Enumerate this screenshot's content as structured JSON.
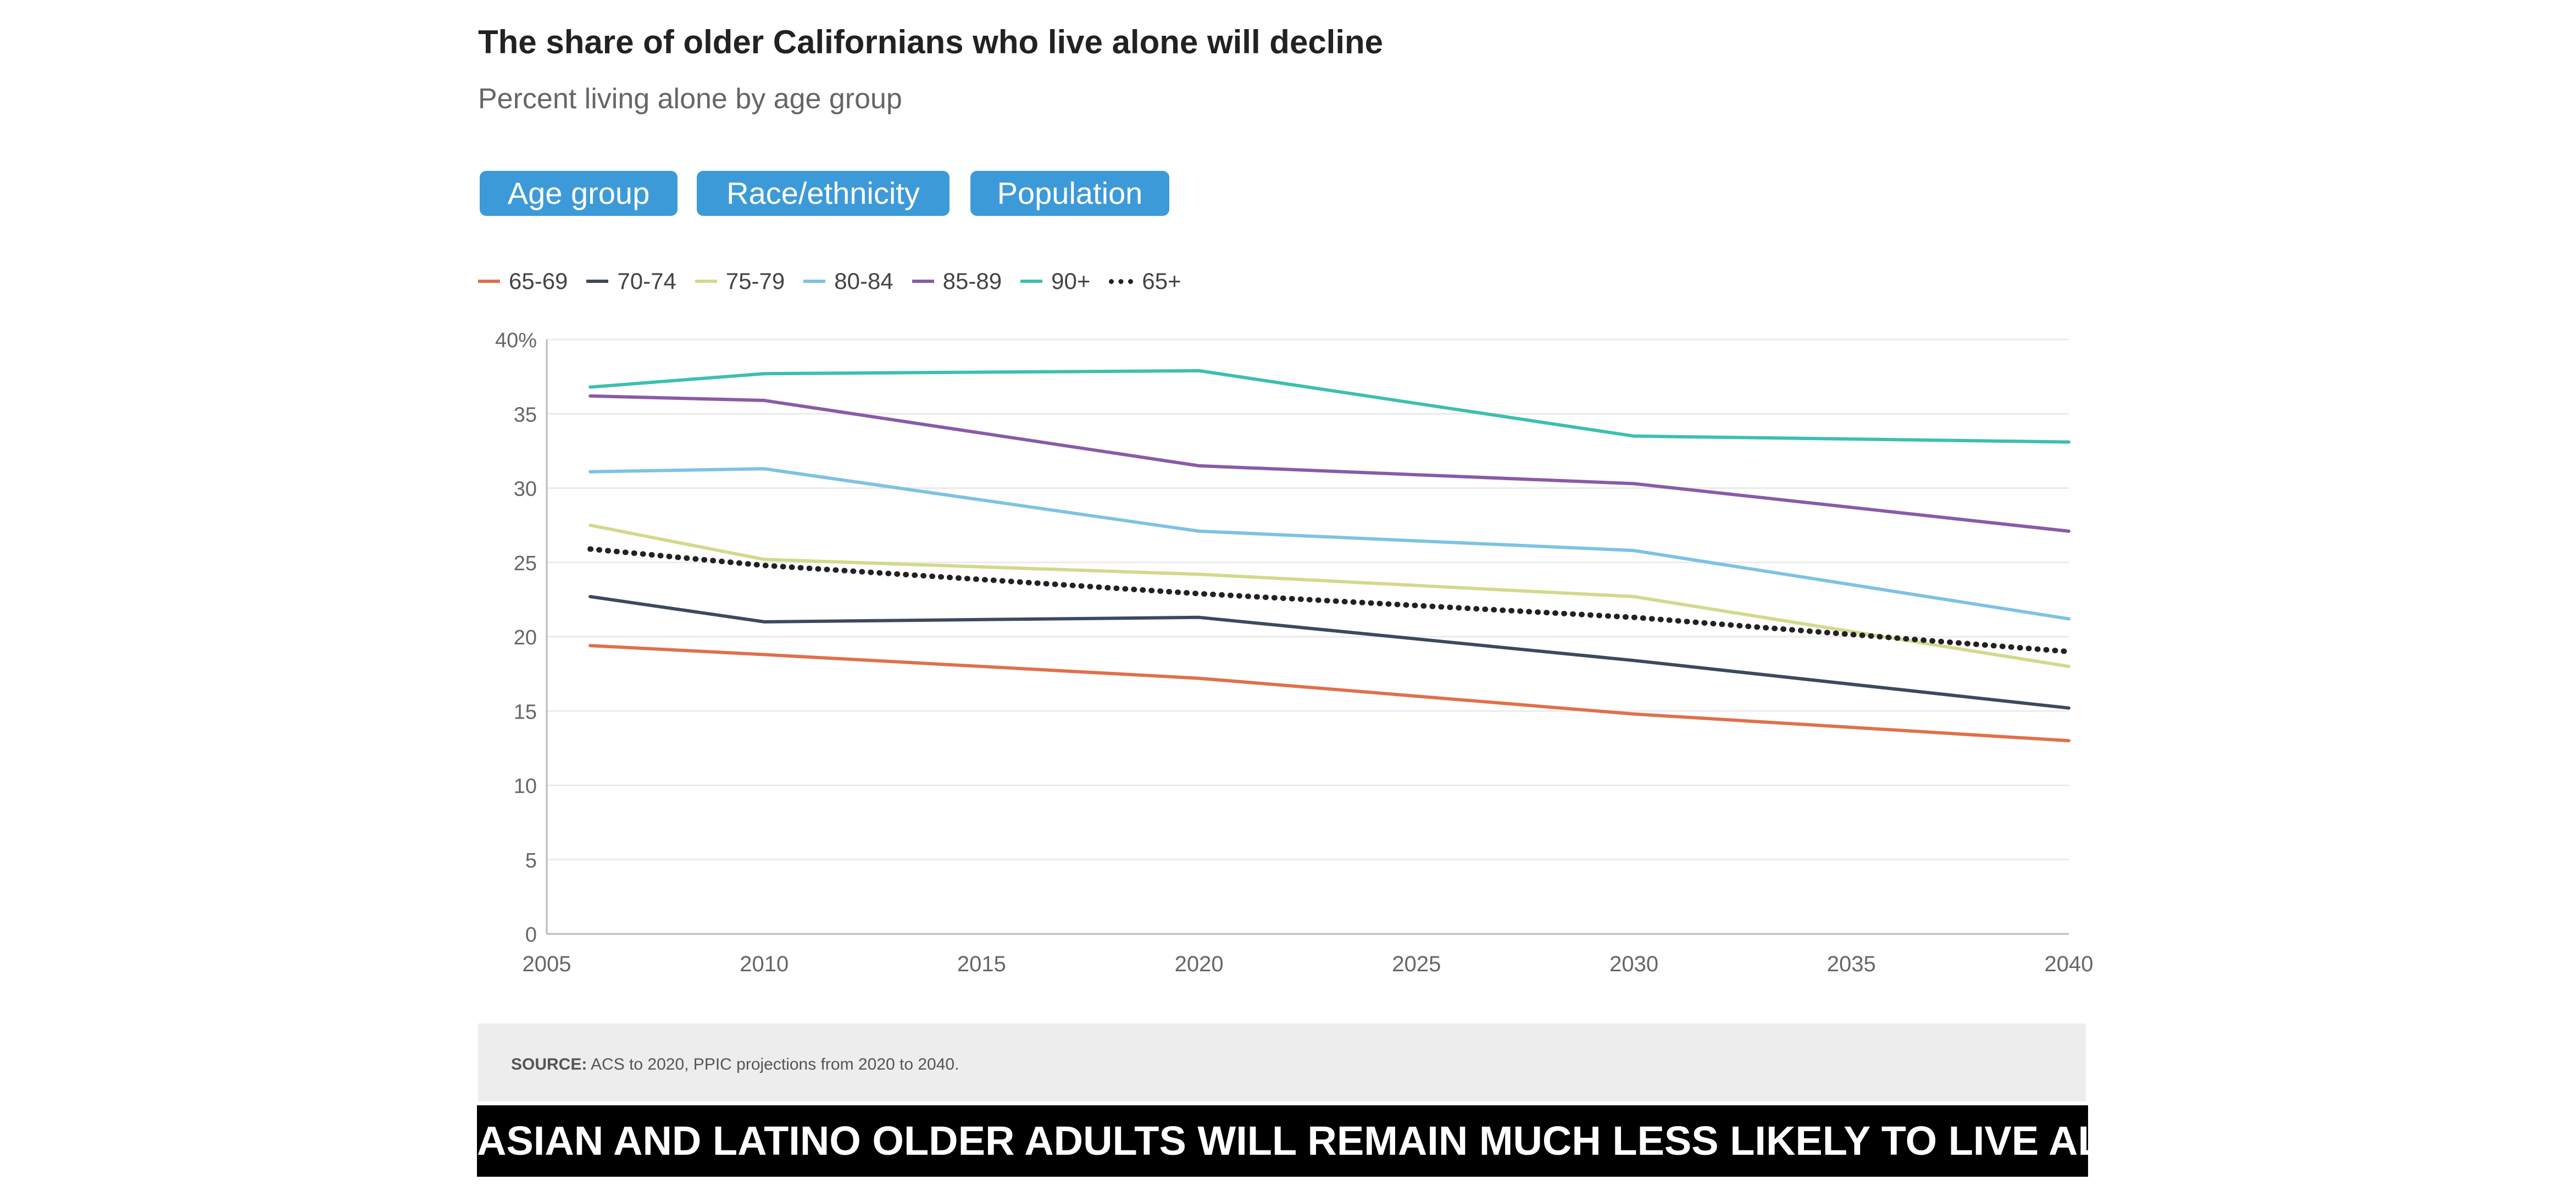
{
  "header": {
    "title": "The share of older Californians who live alone will decline",
    "subtitle": "Percent living alone by age group"
  },
  "tabs": [
    {
      "label": "Age group",
      "selected": true
    },
    {
      "label": "Race/ethnicity",
      "selected": false
    },
    {
      "label": "Population",
      "selected": false
    }
  ],
  "colors": {
    "tab_background": "#3d9ad9",
    "banner_background": "#000000",
    "source_background": "#ededed"
  },
  "chart_data": {
    "type": "line",
    "title": "The share of older Californians who live alone will decline",
    "subtitle": "Percent living alone by age group",
    "xlabel": "",
    "ylabel": "",
    "xlim": [
      2005,
      2040
    ],
    "ylim": [
      0,
      40
    ],
    "x_ticks": [
      "2005",
      "2010",
      "2015",
      "2020",
      "2025",
      "2030",
      "2035",
      "2040"
    ],
    "y_ticks": [
      "0",
      "5",
      "10",
      "15",
      "20",
      "25",
      "30",
      "35",
      "40%"
    ],
    "grid": true,
    "legend_position": "top-left",
    "series": [
      {
        "name": "65-69",
        "color": "#e0704a",
        "style": "solid",
        "x": [
          2006,
          2010,
          2020,
          2030,
          2040
        ],
        "values": [
          19.4,
          18.8,
          17.2,
          14.8,
          13.0
        ]
      },
      {
        "name": "70-74",
        "color": "#3b4a5c",
        "style": "solid",
        "x": [
          2006,
          2010,
          2020,
          2030,
          2040
        ],
        "values": [
          22.7,
          21.0,
          21.3,
          18.4,
          15.2
        ]
      },
      {
        "name": "75-79",
        "color": "#d3d98a",
        "style": "solid",
        "x": [
          2006,
          2010,
          2020,
          2030,
          2040
        ],
        "values": [
          27.5,
          25.2,
          24.2,
          22.7,
          18.0
        ]
      },
      {
        "name": "80-84",
        "color": "#7cc3e3",
        "style": "solid",
        "x": [
          2006,
          2010,
          2020,
          2030,
          2040
        ],
        "values": [
          31.1,
          31.3,
          27.1,
          25.8,
          21.2
        ]
      },
      {
        "name": "85-89",
        "color": "#8a5aa8",
        "style": "solid",
        "x": [
          2006,
          2010,
          2020,
          2030,
          2040
        ],
        "values": [
          36.2,
          35.9,
          31.5,
          30.3,
          27.1
        ]
      },
      {
        "name": "90+",
        "color": "#3dbfb0",
        "style": "solid",
        "x": [
          2006,
          2010,
          2020,
          2030,
          2040
        ],
        "values": [
          36.8,
          37.7,
          37.9,
          33.5,
          33.1
        ]
      },
      {
        "name": "65+",
        "color": "#222222",
        "style": "dotted",
        "x": [
          2006,
          2010,
          2020,
          2030,
          2040
        ],
        "values": [
          25.9,
          24.8,
          22.9,
          21.3,
          19.0
        ]
      }
    ]
  },
  "source": {
    "label": "SOURCE:",
    "text": " ACS to 2020, PPIC projections from 2020 to 2040."
  },
  "banner": {
    "text": "ASIAN AND LATINO OLDER ADULTS WILL REMAIN MUCH LESS LIKELY TO LIVE ALONE"
  }
}
